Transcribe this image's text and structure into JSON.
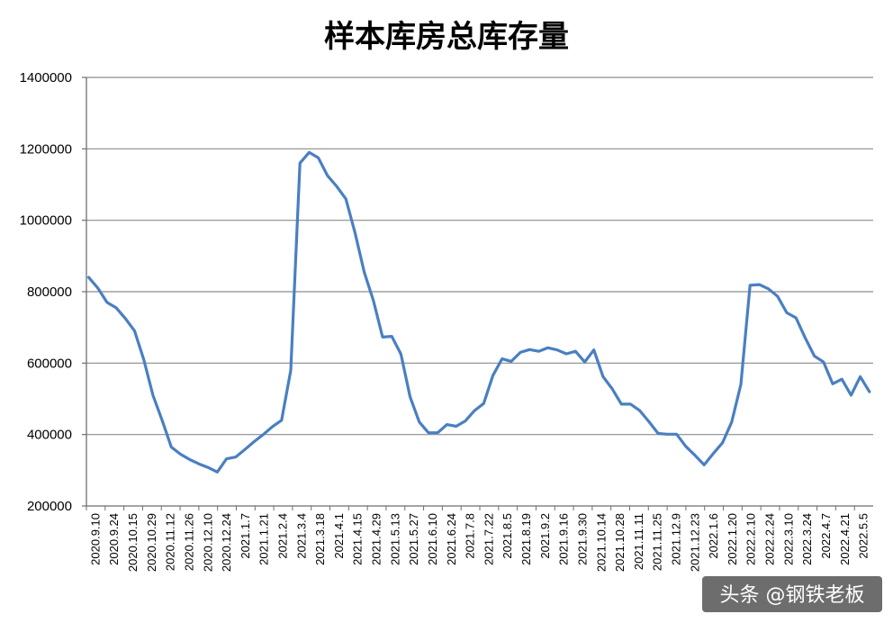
{
  "watermark": "头条 @钢铁老板",
  "colors": {
    "line": "#4a7fc1",
    "grid": "#8c8c8c",
    "axis": "#6e6e6e",
    "watermark_bg": "#3c3c3c"
  },
  "chart_data": {
    "type": "line",
    "title": "样本库房总库存量",
    "xlabel": "",
    "ylabel": "",
    "ylim": [
      200000,
      1400000
    ],
    "yticks": [
      200000,
      400000,
      600000,
      800000,
      1000000,
      1200000,
      1400000
    ],
    "ytick_labels": [
      "200000",
      "400000",
      "600000",
      "800000",
      "1000000",
      "1200000",
      "1400000"
    ],
    "xtick_labels": [
      "2020.9.10",
      "2020.9.24",
      "2020.10.15",
      "2020.10.29",
      "2020.11.12",
      "2020.11.26",
      "2020.12.10",
      "2020.12.24",
      "2021.1.7",
      "2021.1.21",
      "2021.2.4",
      "2021.3.4",
      "2021.3.18",
      "2021.4.1",
      "2021.4.15",
      "2021.4.29",
      "2021.5.13",
      "2021.5.27",
      "2021.6.10",
      "2021.6.24",
      "2021.7.8",
      "2021.7.22",
      "2021.8.5",
      "2021.8.19",
      "2021.9.2",
      "2021.9.16",
      "2021.9.30",
      "2021.10.14",
      "2021.10.28",
      "2021.11.11",
      "2021.11.25",
      "2021.12.9",
      "2021.12.23",
      "2022.1.6",
      "2022.1.20",
      "2022.2.10",
      "2022.2.24",
      "2022.3.10",
      "2022.3.24",
      "2022.4.7",
      "2022.4.21",
      "2022.5.5"
    ],
    "grid": true,
    "legend": "none",
    "series": [
      {
        "values": [
          840000,
          810000,
          770000,
          755000,
          725000,
          690000,
          610000,
          510000,
          440000,
          365000,
          345000,
          330000,
          318000,
          308000,
          295000,
          332000,
          337000,
          358000,
          380000,
          400000,
          422000,
          440000,
          580000,
          1160000,
          1190000,
          1175000,
          1125000,
          1095000,
          1060000,
          965000,
          855000,
          775000,
          673000,
          675000,
          625000,
          505000,
          435000,
          405000,
          405000,
          428000,
          423000,
          438000,
          467000,
          487000,
          565000,
          612000,
          605000,
          630000,
          638000,
          633000,
          643000,
          637000,
          626000,
          633000,
          603000,
          637000,
          562000,
          528000,
          485000,
          485000,
          467000,
          436000,
          403000,
          401000,
          401000,
          367000,
          342000,
          315000,
          347000,
          377000,
          435000,
          540000,
          818000,
          820000,
          808000,
          787000,
          741000,
          727000,
          671000,
          620000,
          603000,
          542000,
          555000,
          510000,
          562000,
          520000
        ]
      }
    ]
  }
}
